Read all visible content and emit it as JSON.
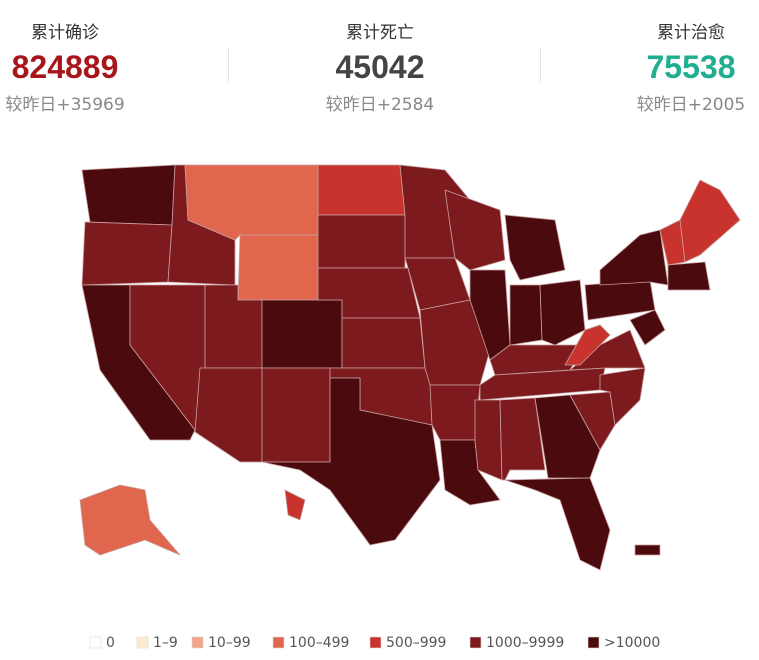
{
  "stats": [
    {
      "title": "累计确诊",
      "value": "824889",
      "delta": "较昨日+35969",
      "color": "#a8161b"
    },
    {
      "title": "累计死亡",
      "value": "45042",
      "delta": "较昨日+2584",
      "color": "#444444"
    },
    {
      "title": "累计治愈",
      "value": "75538",
      "delta": "较昨日+2005",
      "color": "#1fae8e"
    }
  ],
  "legend": [
    {
      "label": "0",
      "color": "#ffffff"
    },
    {
      "label": "1–9",
      "color": "#fdebcf"
    },
    {
      "label": "10–99",
      "color": "#f2a48b"
    },
    {
      "label": "100–499",
      "color": "#e0664d"
    },
    {
      "label": "500–999",
      "color": "#c8332e"
    },
    {
      "label": "1000–9999",
      "color": "#7d1a1d"
    },
    {
      "label": ">10000",
      "color": "#4a0a0e"
    }
  ]
}
